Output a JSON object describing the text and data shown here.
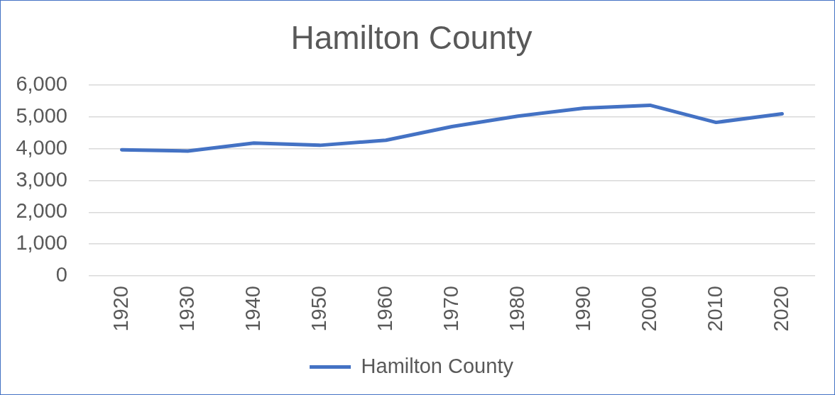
{
  "chart_data": {
    "type": "line",
    "title": "Hamilton County",
    "categories": [
      "1920",
      "1930",
      "1940",
      "1950",
      "1960",
      "1970",
      "1980",
      "1990",
      "2000",
      "2010",
      "2020"
    ],
    "series": [
      {
        "name": "Hamilton County",
        "color": "#4472c4",
        "values": [
          3970,
          3930,
          4180,
          4110,
          4270,
          4700,
          5030,
          5280,
          5370,
          4830,
          5100
        ]
      }
    ],
    "ylim": [
      0,
      6000
    ],
    "yticks": [
      0,
      {
        "value": 1000,
        "label": "1,000"
      },
      {
        "value": 2000,
        "label": "2,000"
      },
      {
        "value": 3000,
        "label": "3,000"
      },
      {
        "value": 4000,
        "label": "4,000"
      },
      {
        "value": 5000,
        "label": "5,000"
      },
      {
        "value": 6000,
        "label": "6,000"
      }
    ],
    "grid": "y",
    "legend": "bottom",
    "marker": "none",
    "line_style": "solid"
  }
}
